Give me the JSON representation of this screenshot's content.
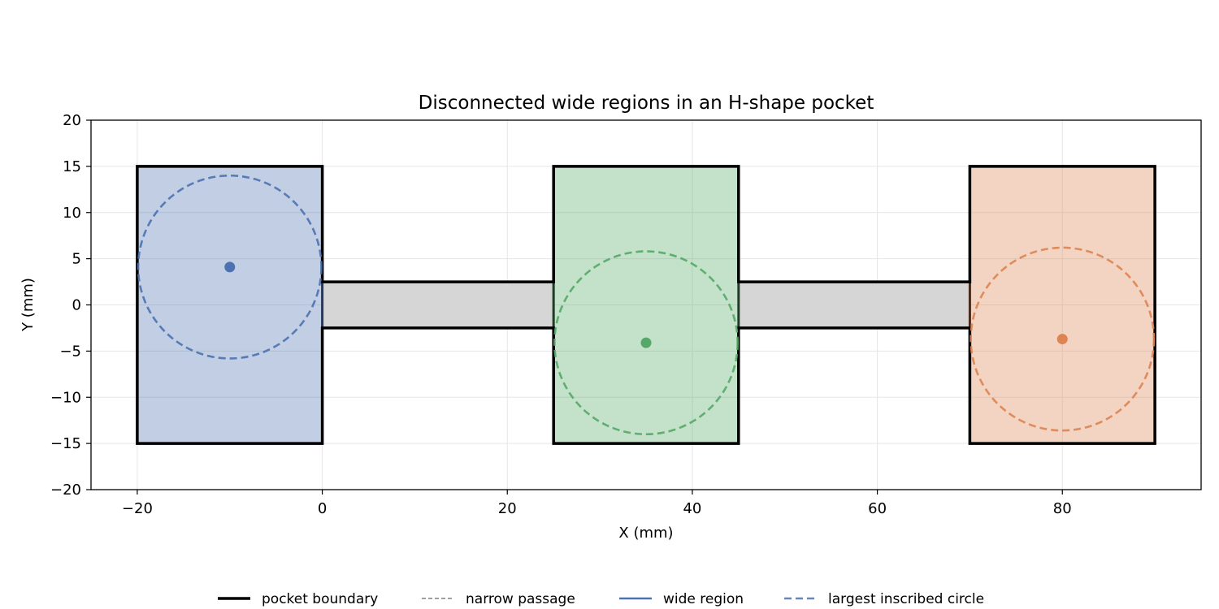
{
  "chart_data": {
    "type": "line",
    "title": "Disconnected wide regions in an H-shape pocket",
    "xlabel": "X (mm)",
    "ylabel": "Y (mm)",
    "xlim": [
      -25,
      95
    ],
    "ylim": [
      -20,
      20
    ],
    "xticks": [
      -20,
      0,
      20,
      40,
      60,
      80
    ],
    "yticks": [
      -20,
      -15,
      -10,
      -5,
      0,
      5,
      10,
      15,
      20
    ],
    "grid": true,
    "legend_position": "bottom-center",
    "pocket_boundary": [
      [
        -20,
        -15
      ],
      [
        0,
        -15
      ],
      [
        0,
        -2.5
      ],
      [
        25,
        -2.5
      ],
      [
        25,
        -15
      ],
      [
        45,
        -15
      ],
      [
        45,
        -2.5
      ],
      [
        70,
        -2.5
      ],
      [
        70,
        -15
      ],
      [
        90,
        -15
      ],
      [
        90,
        15
      ],
      [
        70,
        15
      ],
      [
        70,
        2.5
      ],
      [
        45,
        2.5
      ],
      [
        45,
        15
      ],
      [
        25,
        15
      ],
      [
        25,
        2.5
      ],
      [
        0,
        2.5
      ],
      [
        0,
        15
      ],
      [
        -20,
        15
      ]
    ],
    "narrow_passages": [
      {
        "x": [
          0,
          25
        ],
        "y": [
          -2.5,
          2.5
        ]
      },
      {
        "x": [
          45,
          70
        ],
        "y": [
          -2.5,
          2.5
        ]
      }
    ],
    "wide_regions": [
      {
        "x": [
          -20,
          0
        ],
        "y": [
          -15,
          15
        ],
        "color": "#4c72b0",
        "edge": "#243a5e",
        "circle_center": [
          -10,
          4.1
        ],
        "circle_radius": 9.9
      },
      {
        "x": [
          25,
          45
        ],
        "y": [
          -15,
          15
        ],
        "color": "#55a868",
        "edge": "#1f3d26",
        "circle_center": [
          35,
          -4.1
        ],
        "circle_radius": 9.9
      },
      {
        "x": [
          70,
          90
        ],
        "y": [
          -15,
          15
        ],
        "color": "#dd8452",
        "edge": "#4a2a18",
        "circle_center": [
          80,
          -3.7
        ],
        "circle_radius": 9.9
      }
    ],
    "legend": [
      {
        "label": "pocket boundary",
        "style": "solid-thick",
        "color": "#000000"
      },
      {
        "label": "narrow passage",
        "style": "dashed-thin",
        "color": "#808080"
      },
      {
        "label": "wide region",
        "style": "solid",
        "color": "#4c72b0"
      },
      {
        "label": "largest inscribed circle",
        "style": "dashed",
        "color": "#4c72b0"
      }
    ]
  }
}
